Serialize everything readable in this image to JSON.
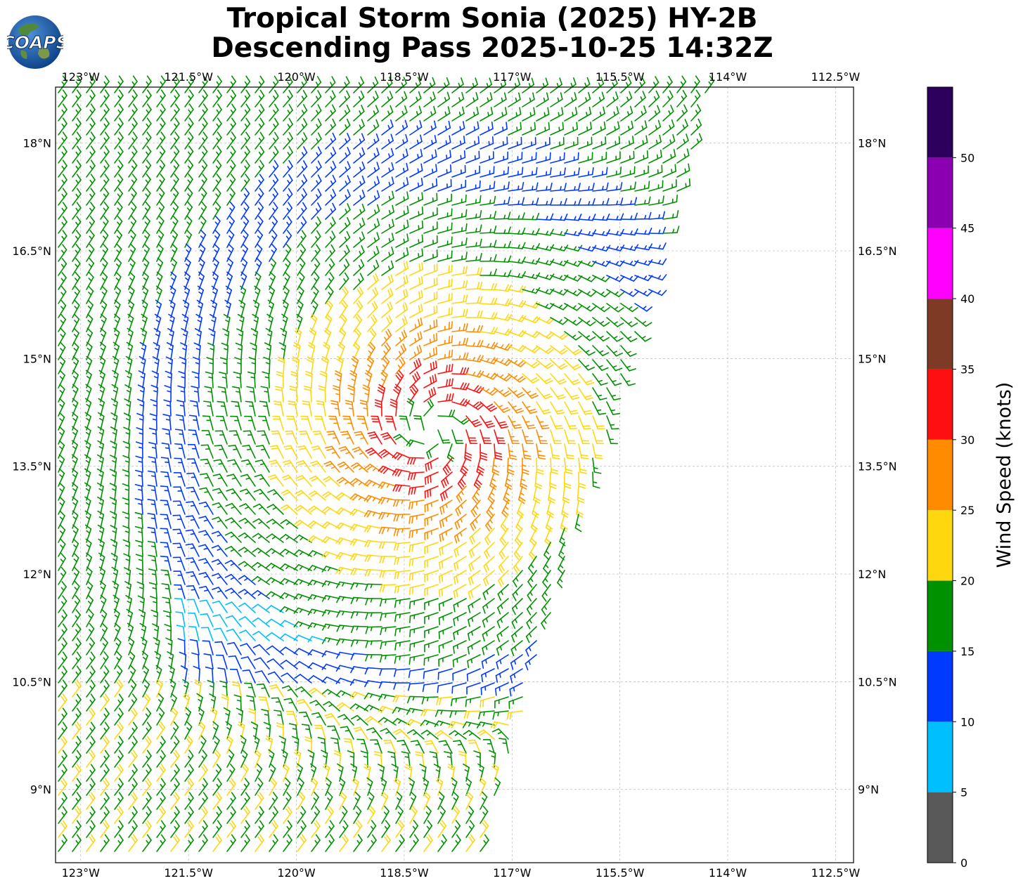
{
  "header": {
    "title_line1": "Tropical Storm Sonia (2025) HY-2B",
    "title_line2": "Descending Pass 2025-10-25 14:32Z",
    "logo_text": "COAPS"
  },
  "chart_data": {
    "type": "wind-barb map",
    "lon_ticks": [
      -123,
      -121.5,
      -120,
      -118.5,
      -117,
      -115.5,
      -114,
      -112.5
    ],
    "lon_tick_labels": [
      "123°W",
      "121.5°W",
      "120°W",
      "118.5°W",
      "117°W",
      "115.5°W",
      "114°W",
      "112.5°W"
    ],
    "lat_ticks": [
      9,
      10.5,
      12,
      13.5,
      15,
      16.5,
      18
    ],
    "lat_tick_labels": [
      "9°N",
      "10.5°N",
      "12°N",
      "13.5°N",
      "15°N",
      "16.5°N",
      "18°N"
    ],
    "lon_range": [
      -123.35,
      -112.25
    ],
    "lat_range": [
      7.98,
      18.78
    ],
    "grid": true,
    "storm_center": {
      "lon": -118.1,
      "lat": 14.0
    },
    "colorbar": {
      "label": "Wind Speed (knots)",
      "bounds": [
        0,
        5,
        10,
        15,
        20,
        25,
        30,
        35,
        40,
        45,
        50,
        55
      ],
      "tick_labels": [
        "0",
        "5",
        "10",
        "15",
        "20",
        "25",
        "30",
        "35",
        "40",
        "45",
        "50"
      ],
      "colors": [
        "#595959",
        "#00bfff",
        "#0039ff",
        "#009100",
        "#ffd70f",
        "#ff8c00",
        "#ff1010",
        "#7f3a25",
        "#ff00ff",
        "#8b00b0",
        "#2e005e"
      ]
    }
  }
}
